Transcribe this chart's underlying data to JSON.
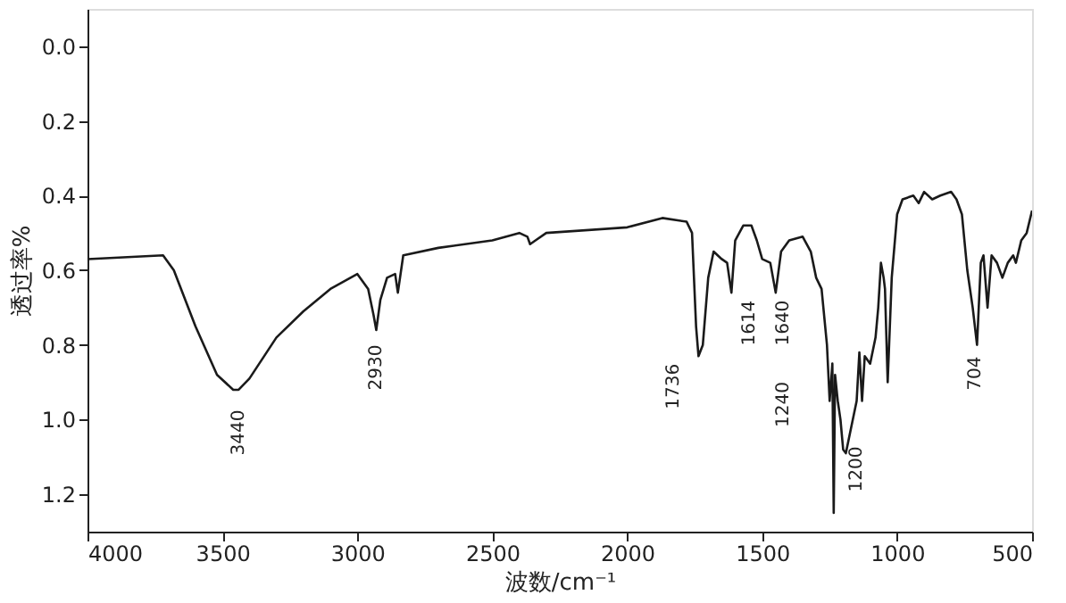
{
  "chart_data": {
    "type": "line",
    "xlabel": "波数/cm⁻¹",
    "ylabel": "透过率%",
    "xlim": [
      4000,
      500
    ],
    "xticks": [
      4000,
      3500,
      3000,
      2500,
      2000,
      1500,
      1000,
      500
    ],
    "ylim": [
      1.3,
      -0.1
    ],
    "yticks": [
      {
        "value": 0,
        "label": "0.0"
      },
      0.2,
      0.4,
      0.6,
      0.8,
      {
        "value": 1,
        "label": "1.0"
      },
      1.2
    ],
    "grid": false,
    "marker": "none",
    "line_style": "solid",
    "series": [
      {
        "color": "#1a1a1a",
        "x": [
          4000,
          3720,
          3680,
          3600,
          3520,
          3460,
          3440,
          3400,
          3300,
          3200,
          3100,
          3000,
          2960,
          2940,
          2930,
          2915,
          2890,
          2860,
          2850,
          2830,
          2700,
          2500,
          2400,
          2370,
          2360,
          2340,
          2300,
          2000,
          1870,
          1780,
          1760,
          1745,
          1736,
          1720,
          1700,
          1680,
          1650,
          1630,
          1614,
          1600,
          1570,
          1540,
          1520,
          1500,
          1470,
          1450,
          1430,
          1400,
          1350,
          1320,
          1300,
          1280,
          1260,
          1250,
          1240,
          1235,
          1230,
          1220,
          1210,
          1200,
          1190,
          1170,
          1150,
          1140,
          1130,
          1120,
          1100,
          1080,
          1070,
          1060,
          1050,
          1045,
          1035,
          1020,
          1000,
          980,
          940,
          920,
          900,
          870,
          840,
          800,
          780,
          760,
          740,
          720,
          704,
          690,
          680,
          665,
          650,
          630,
          610,
          590,
          570,
          560,
          540,
          520,
          500
        ],
        "values": [
          0.57,
          0.56,
          0.6,
          0.75,
          0.88,
          0.92,
          0.92,
          0.89,
          0.78,
          0.71,
          0.65,
          0.61,
          0.65,
          0.72,
          0.76,
          0.68,
          0.62,
          0.61,
          0.66,
          0.56,
          0.54,
          0.52,
          0.5,
          0.51,
          0.53,
          0.52,
          0.5,
          0.485,
          0.46,
          0.47,
          0.5,
          0.75,
          0.83,
          0.8,
          0.62,
          0.55,
          0.57,
          0.58,
          0.66,
          0.52,
          0.48,
          0.48,
          0.52,
          0.57,
          0.58,
          0.66,
          0.55,
          0.52,
          0.51,
          0.55,
          0.62,
          0.65,
          0.8,
          0.95,
          0.85,
          1.25,
          0.88,
          0.95,
          1.0,
          1.08,
          1.09,
          1.02,
          0.95,
          0.82,
          0.95,
          0.83,
          0.85,
          0.78,
          0.7,
          0.58,
          0.62,
          0.65,
          0.9,
          0.62,
          0.45,
          0.41,
          0.4,
          0.42,
          0.39,
          0.41,
          0.4,
          0.39,
          0.41,
          0.45,
          0.6,
          0.7,
          0.8,
          0.58,
          0.56,
          0.7,
          0.56,
          0.58,
          0.62,
          0.58,
          0.56,
          0.58,
          0.52,
          0.5,
          0.44
        ]
      }
    ],
    "annotations": [
      {
        "text": "3440",
        "x": 3440,
        "y": 0.92
      },
      {
        "text": "2930",
        "x": 2930,
        "y": 0.76
      },
      {
        "text": "1736",
        "x": 1736,
        "y": 0.83
      },
      {
        "text": "1614",
        "x": 1614,
        "y": 0.66
      },
      {
        "text": "1640",
        "x": 1450,
        "y": 0.66
      },
      {
        "text": "1240",
        "x": 1250,
        "y": 0.95
      },
      {
        "text": "1200",
        "x": 1190,
        "y": 1.09
      },
      {
        "text": "704",
        "x": 704,
        "y": 0.8
      }
    ]
  }
}
